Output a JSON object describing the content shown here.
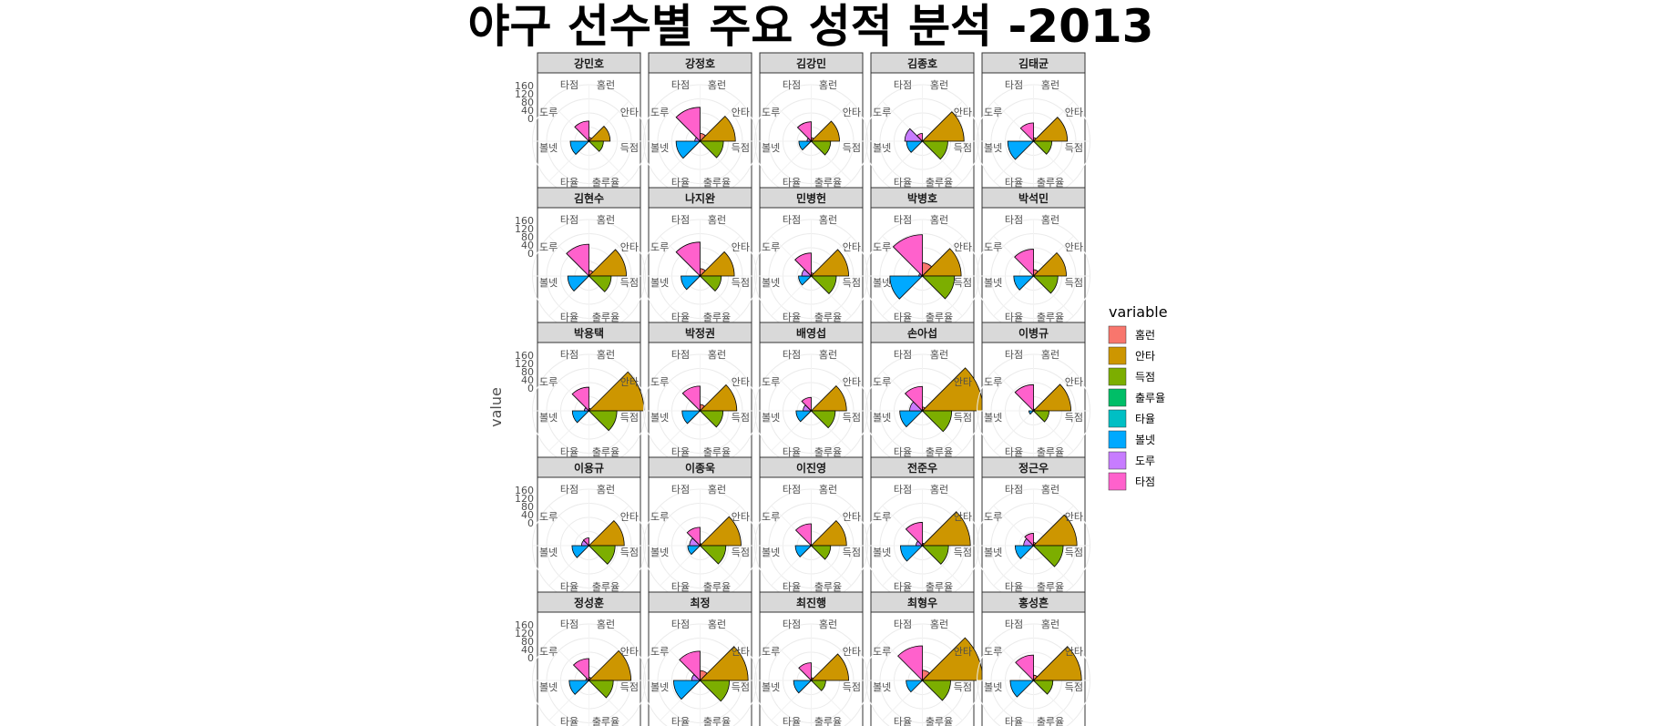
{
  "title": "야구 선수별 주요 성적 분석 -2013",
  "y_axis_label": "value",
  "y_ticks": [
    "0",
    "40",
    "80",
    "120",
    "160"
  ],
  "legend": {
    "title": "variable",
    "entries": [
      {
        "label": "홈런",
        "color": "#F8766D"
      },
      {
        "label": "안타",
        "color": "#CD9600"
      },
      {
        "label": "득점",
        "color": "#7CAE00"
      },
      {
        "label": "출루율",
        "color": "#00BE67"
      },
      {
        "label": "타율",
        "color": "#00BFC4"
      },
      {
        "label": "볼넷",
        "color": "#00A9FF"
      },
      {
        "label": "도루",
        "color": "#C77CFF"
      },
      {
        "label": "타점",
        "color": "#FF61CC"
      }
    ]
  },
  "chart_data": {
    "type": "polar-bar",
    "title": "야구 선수별 주요 성적 분석 -2013",
    "ylabel": "value",
    "ylim": [
      0,
      160
    ],
    "grid": true,
    "legend_position": "right",
    "categories": [
      "홈런",
      "안타",
      "득점",
      "출루율",
      "타율",
      "볼넷",
      "도루",
      "타점"
    ],
    "category_labels": {
      "top": [
        "타점",
        "홈런"
      ],
      "left": "도루",
      "right": "안타",
      "lower_left": "볼넷",
      "lower_right": "득점",
      "bottom": [
        "타율",
        "출루율"
      ]
    },
    "players": [
      {
        "name": "강민호",
        "values": [
          11,
          60,
          41,
          0.4,
          0.3,
          53,
          3,
          57
        ]
      },
      {
        "name": "강정호",
        "values": [
          22,
          100,
          66,
          0.4,
          0.3,
          68,
          15,
          96
        ]
      },
      {
        "name": "김강민",
        "values": [
          10,
          80,
          55,
          0.4,
          0.3,
          35,
          12,
          55
        ]
      },
      {
        "name": "김종호",
        "values": [
          0,
          118,
          72,
          0.4,
          0.3,
          45,
          50,
          22
        ]
      },
      {
        "name": "김태균",
        "values": [
          10,
          96,
          52,
          0.5,
          0.3,
          73,
          0,
          52
        ]
      },
      {
        "name": "김현수",
        "values": [
          16,
          106,
          63,
          0.4,
          0.3,
          60,
          2,
          90
        ]
      },
      {
        "name": "나지완",
        "values": [
          21,
          97,
          60,
          0.4,
          0.3,
          54,
          3,
          96
        ]
      },
      {
        "name": "민병헌",
        "values": [
          9,
          106,
          71,
          0.4,
          0.3,
          36,
          27,
          65
        ]
      },
      {
        "name": "박병호",
        "values": [
          37,
          110,
          91,
          0.4,
          0.3,
          92,
          10,
          117
        ]
      },
      {
        "name": "박석민",
        "values": [
          18,
          93,
          69,
          0.4,
          0.3,
          56,
          1,
          76
        ]
      },
      {
        "name": "박용택",
        "values": [
          7,
          156,
          79,
          0.4,
          0.3,
          47,
          13,
          67
        ]
      },
      {
        "name": "박정권",
        "values": [
          18,
          104,
          65,
          0.4,
          0.3,
          51,
          3,
          70
        ]
      },
      {
        "name": "배영섭",
        "values": [
          2,
          100,
          68,
          0.4,
          0.3,
          43,
          23,
          38
        ]
      },
      {
        "name": "손아섭",
        "values": [
          11,
          172,
          83,
          0.4,
          0.3,
          64,
          36,
          69
        ]
      },
      {
        "name": "이병규",
        "values": [
          5,
          106,
          44,
          0.4,
          0.3,
          13,
          2,
          74
        ]
      },
      {
        "name": "이용규",
        "values": [
          2,
          100,
          74,
          0.4,
          0.3,
          48,
          21,
          22
        ]
      },
      {
        "name": "이종욱",
        "values": [
          6,
          116,
          73,
          0.4,
          0.3,
          35,
          30,
          52
        ]
      },
      {
        "name": "이진영",
        "values": [
          3,
          100,
          55,
          0.4,
          0.3,
          45,
          3,
          62
        ]
      },
      {
        "name": "전준우",
        "values": [
          7,
          136,
          74,
          0.4,
          0.3,
          62,
          18,
          66
        ]
      },
      {
        "name": "정근우",
        "values": [
          9,
          123,
          84,
          0.4,
          0.3,
          52,
          28,
          35
        ]
      },
      {
        "name": "정성훈",
        "values": [
          9,
          119,
          69,
          0.4,
          0.3,
          56,
          9,
          62
        ]
      },
      {
        "name": "최정",
        "values": [
          28,
          136,
          83,
          0.4,
          0.3,
          75,
          24,
          83
        ]
      },
      {
        "name": "최진행",
        "values": [
          8,
          106,
          41,
          0.4,
          0.3,
          50,
          1,
          50
        ]
      },
      {
        "name": "최형우",
        "values": [
          29,
          171,
          80,
          0.4,
          0.3,
          46,
          1,
          98
        ]
      },
      {
        "name": "홍성흔",
        "values": [
          15,
          136,
          55,
          0.4,
          0.3,
          66,
          0,
          72
        ]
      }
    ]
  }
}
